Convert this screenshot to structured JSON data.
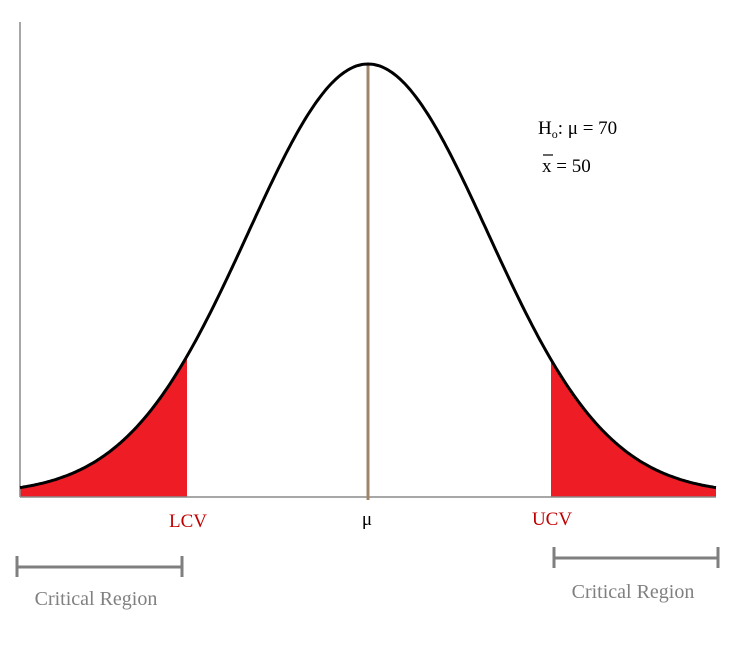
{
  "hypothesis": {
    "null_prefix": "H",
    "null_subscript": "o",
    "null_rest": ": μ = 70",
    "sample_symbol": "x",
    "sample_rest": " = 50"
  },
  "axis_labels": {
    "lower": "LCV",
    "center": "μ",
    "upper": "UCV"
  },
  "regions": {
    "left_label": "Critical Region",
    "right_label": "Critical Region"
  },
  "colors": {
    "curve": "#000000",
    "axis": "#8a8a8a",
    "critical_fill": "#ee1c25",
    "critical_text": "#c00000",
    "mean_line": "#a0856a",
    "region_bracket": "#7f7f7f",
    "region_text": "#808080"
  }
}
